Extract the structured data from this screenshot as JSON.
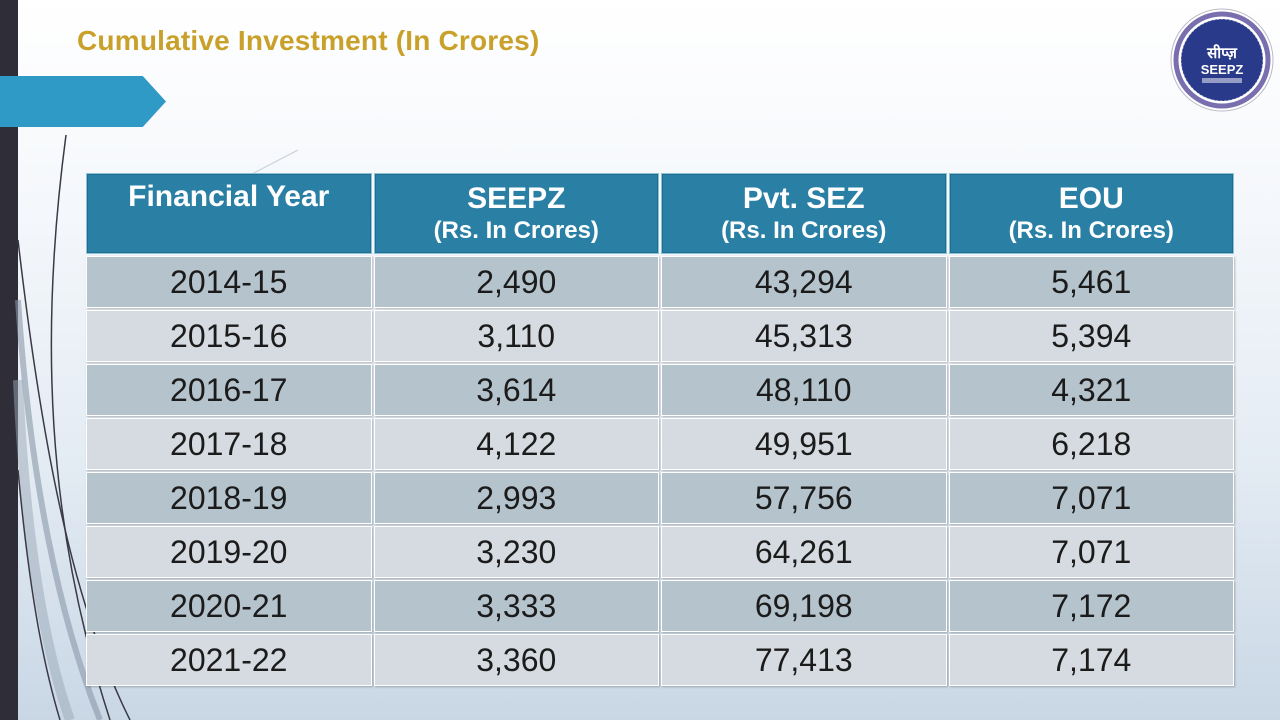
{
  "slide": {
    "title": "Cumulative Investment (In Crores)"
  },
  "logo": {
    "hindi_text": "सीप्ज़",
    "text": "SEEPZ"
  },
  "colors": {
    "title": "#c9a12a",
    "accent": "#2f9ac6",
    "header_bg": "#2a7fa4",
    "row_dark": "#b5c3cd",
    "row_light": "#d5dbe0",
    "left_bar": "#2e2d38"
  },
  "table": {
    "headers": [
      {
        "main": "Financial Year",
        "sub": ""
      },
      {
        "main": "SEEPZ",
        "sub": "(Rs. In Crores)"
      },
      {
        "main": "Pvt. SEZ",
        "sub": "(Rs. In Crores)"
      },
      {
        "main": "EOU",
        "sub": "(Rs. In Crores)"
      }
    ],
    "rows": [
      [
        "2014-15",
        "2,490",
        "43,294",
        "5,461"
      ],
      [
        "2015-16",
        "3,110",
        "45,313",
        "5,394"
      ],
      [
        "2016-17",
        "3,614",
        "48,110",
        "4,321"
      ],
      [
        "2017-18",
        "4,122",
        "49,951",
        "6,218"
      ],
      [
        "2018-19",
        "2,993",
        "57,756",
        "7,071"
      ],
      [
        "2019-20",
        "3,230",
        "64,261",
        "7,071"
      ],
      [
        "2020-21",
        "3,333",
        "69,198",
        "7,172"
      ],
      [
        "2021-22",
        "3,360",
        "77,413",
        "7,174"
      ]
    ]
  }
}
